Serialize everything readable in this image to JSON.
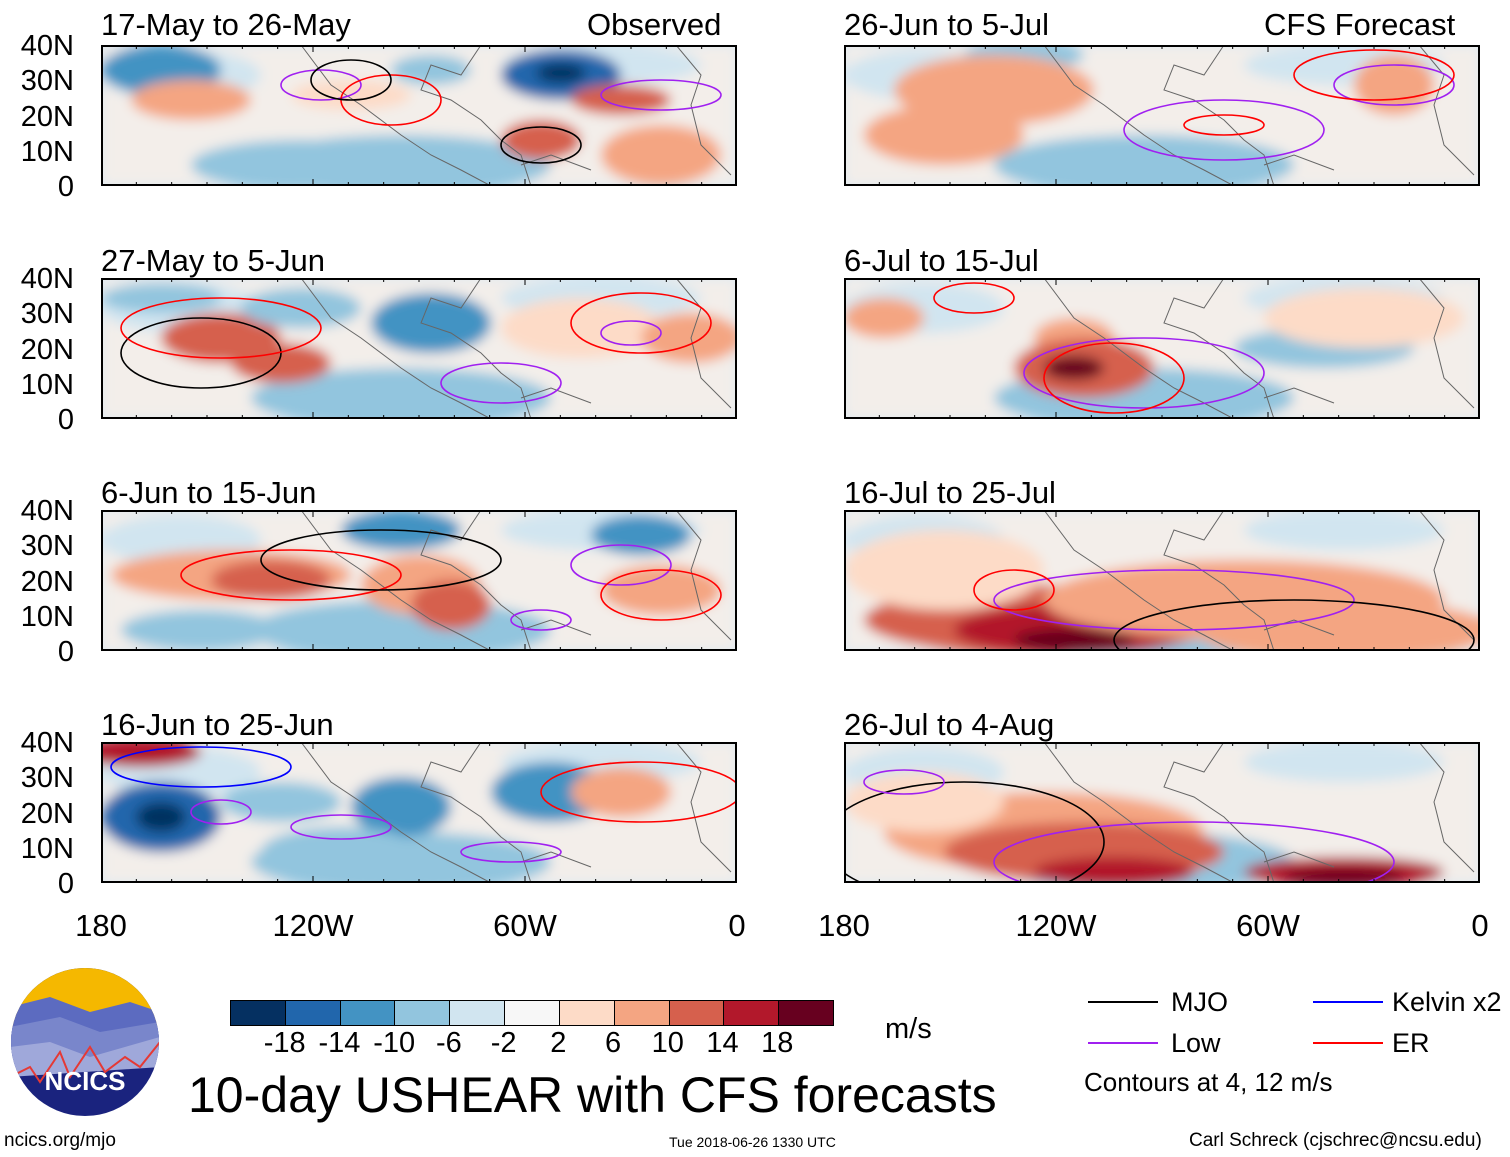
{
  "panels_left": [
    {
      "title": "17-May to 26-May",
      "label": "Observed"
    },
    {
      "title": "27-May to 5-Jun"
    },
    {
      "title": "6-Jun to 15-Jun"
    },
    {
      "title": "16-Jun to 25-Jun"
    }
  ],
  "panels_right": [
    {
      "title": "26-Jun to 5-Jul",
      "label": "CFS Forecast"
    },
    {
      "title": "6-Jul to 15-Jul"
    },
    {
      "title": "16-Jul to 25-Jul"
    },
    {
      "title": "26-Jul to 4-Aug"
    }
  ],
  "y_ticks": [
    "40N",
    "30N",
    "20N",
    "10N",
    "0"
  ],
  "x_ticks": [
    "180",
    "120W",
    "60W",
    "0"
  ],
  "colorbar": {
    "labels": [
      "-18",
      "-14",
      "-10",
      "-6",
      "-2",
      "2",
      "6",
      "10",
      "14",
      "18"
    ],
    "colors": [
      "#053061",
      "#2166ac",
      "#4393c3",
      "#92c5de",
      "#d1e5f0",
      "#f7f7f7",
      "#fddbc7",
      "#f4a582",
      "#d6604d",
      "#b2182b",
      "#67001f"
    ],
    "units": "m/s"
  },
  "legend": {
    "items": [
      {
        "label": "MJO",
        "color": "#000000"
      },
      {
        "label": "Kelvin x2",
        "color": "#0000ff"
      },
      {
        "label": "Low",
        "color": "#a020f0"
      },
      {
        "label": "ER",
        "color": "#ff0000"
      }
    ],
    "note": "Contours at 4, 12 m/s"
  },
  "title": "10-day USHEAR with CFS forecasts",
  "logo_text": "NCICS",
  "footer": {
    "url": "ncics.org/mjo",
    "timestamp": "Tue 2018-06-26 1330 UTC",
    "credit": "Carl Schreck (cjschrec@ncsu.edu)"
  }
}
